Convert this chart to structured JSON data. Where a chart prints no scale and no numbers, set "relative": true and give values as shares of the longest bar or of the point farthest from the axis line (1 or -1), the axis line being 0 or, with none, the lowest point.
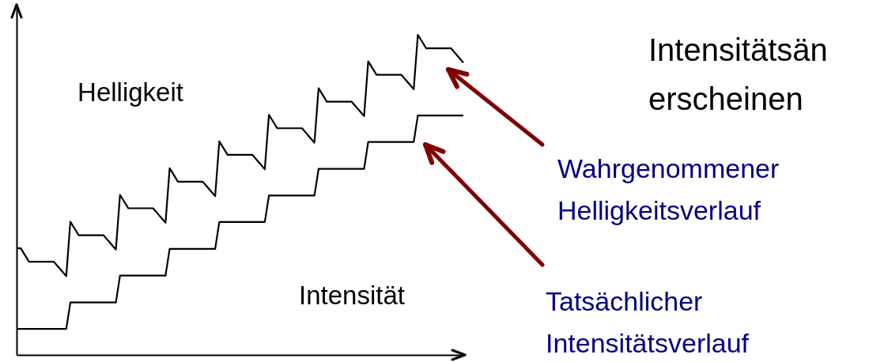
{
  "chart_data": {
    "type": "line",
    "relative": true,
    "marker": "none",
    "line_style": "solid",
    "categories": [
      null,
      null,
      null,
      null,
      null,
      null,
      null,
      null,
      null,
      null,
      null,
      null,
      null,
      null,
      null,
      null,
      null,
      null,
      null,
      null,
      null,
      null,
      null,
      null,
      null,
      null,
      null,
      null,
      null,
      null,
      null,
      null,
      null,
      null,
      null,
      null,
      null,
      null,
      null,
      null,
      null,
      null,
      null,
      null,
      null,
      null,
      null,
      null,
      null,
      null,
      null,
      null,
      null,
      null,
      null,
      null,
      null,
      null,
      null,
      null,
      null,
      null,
      null,
      null,
      null,
      null,
      null,
      null,
      null,
      null,
      null,
      null,
      null,
      null,
      null,
      null,
      null,
      null,
      null,
      null,
      null,
      null,
      null,
      null,
      null,
      null,
      null,
      null,
      null,
      null,
      null,
      null,
      null,
      null,
      null,
      null,
      null,
      null,
      null,
      null,
      null,
      null,
      null,
      null,
      null,
      null,
      null,
      null,
      null
    ],
    "series": [
      {
        "name": "Helligkeit",
        "color": "#000000",
        "values": [
          0.333,
          0.333,
          0.312,
          0.291,
          0.291,
          0.291,
          0.291,
          0.291,
          0.291,
          0.291,
          0.276,
          0.261,
          0.246,
          0.416,
          0.395,
          0.374,
          0.374,
          0.374,
          0.374,
          0.374,
          0.374,
          0.374,
          0.359,
          0.344,
          0.329,
          0.5,
          0.479,
          0.458,
          0.458,
          0.458,
          0.458,
          0.458,
          0.458,
          0.458,
          0.443,
          0.428,
          0.413,
          0.583,
          0.562,
          0.541,
          0.541,
          0.541,
          0.541,
          0.541,
          0.541,
          0.541,
          0.526,
          0.511,
          0.496,
          0.667,
          0.646,
          0.625,
          0.625,
          0.625,
          0.625,
          0.625,
          0.625,
          0.625,
          0.61,
          0.595,
          0.58,
          0.75,
          0.729,
          0.708,
          0.708,
          0.708,
          0.708,
          0.708,
          0.708,
          0.708,
          0.693,
          0.678,
          0.663,
          0.833,
          0.812,
          0.791,
          0.791,
          0.791,
          0.791,
          0.791,
          0.791,
          0.791,
          0.776,
          0.761,
          0.746,
          0.917,
          0.896,
          0.875,
          0.875,
          0.875,
          0.875,
          0.875,
          0.875,
          0.875,
          0.86,
          0.845,
          0.83,
          1.0,
          0.979,
          0.958,
          0.958,
          0.958,
          0.958,
          0.958,
          0.958,
          0.958,
          0.943,
          0.928,
          0.913
        ]
      },
      {
        "name": "Intensität",
        "color": "#000000",
        "values": [
          0.081,
          0.081,
          0.081,
          0.081,
          0.081,
          0.081,
          0.081,
          0.081,
          0.081,
          0.081,
          0.081,
          0.081,
          0.081,
          0.164,
          0.164,
          0.164,
          0.164,
          0.164,
          0.164,
          0.164,
          0.164,
          0.164,
          0.164,
          0.164,
          0.164,
          0.248,
          0.248,
          0.248,
          0.248,
          0.248,
          0.248,
          0.248,
          0.248,
          0.248,
          0.248,
          0.248,
          0.248,
          0.331,
          0.331,
          0.331,
          0.331,
          0.331,
          0.331,
          0.331,
          0.331,
          0.331,
          0.331,
          0.331,
          0.331,
          0.415,
          0.415,
          0.415,
          0.415,
          0.415,
          0.415,
          0.415,
          0.415,
          0.415,
          0.415,
          0.415,
          0.415,
          0.498,
          0.498,
          0.498,
          0.498,
          0.498,
          0.498,
          0.498,
          0.498,
          0.498,
          0.498,
          0.498,
          0.498,
          0.581,
          0.581,
          0.581,
          0.581,
          0.581,
          0.581,
          0.581,
          0.581,
          0.581,
          0.581,
          0.581,
          0.581,
          0.665,
          0.665,
          0.665,
          0.665,
          0.665,
          0.665,
          0.665,
          0.665,
          0.665,
          0.665,
          0.665,
          0.665,
          0.748,
          0.748,
          0.748,
          0.748,
          0.748,
          0.748,
          0.748,
          0.748,
          0.748,
          0.748,
          0.748,
          0.748
        ]
      }
    ],
    "annotations": [
      "Wahrgenommener\nHelligkeitsverlauf",
      "Tatsächlicher\nIntensitätsverlauf",
      "Intensitätsän\nerscheinen"
    ]
  }
}
